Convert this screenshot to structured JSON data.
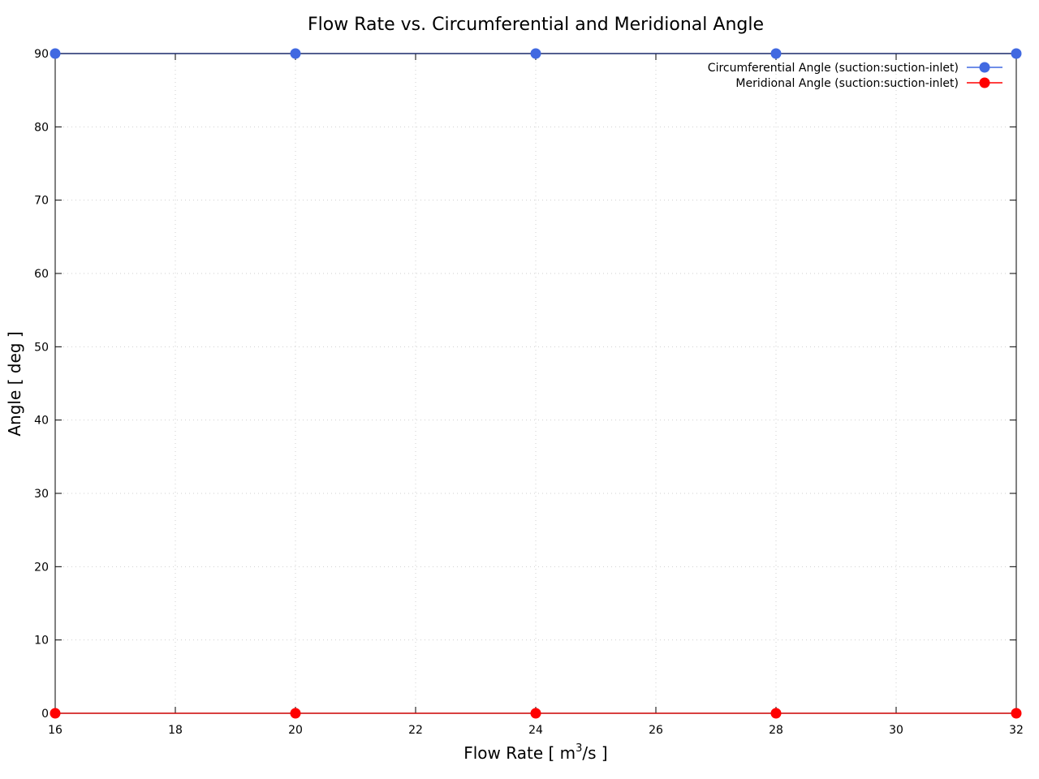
{
  "chart_data": {
    "type": "line",
    "title": "Flow Rate vs. Circumferential and Meridional Angle",
    "xlabel_prefix": "Flow Rate [ m",
    "xlabel_sup": "3",
    "xlabel_suffix": "/s ]",
    "ylabel": "Angle [ deg ]",
    "xlim": [
      16,
      32
    ],
    "ylim": [
      0,
      90
    ],
    "xticks": [
      "16",
      "18",
      "20",
      "22",
      "24",
      "26",
      "28",
      "30",
      "32"
    ],
    "yticks": [
      "0",
      "10",
      "20",
      "30",
      "40",
      "50",
      "60",
      "70",
      "80",
      "90"
    ],
    "grid": true,
    "legend_position": "top-right",
    "x": [
      16,
      20,
      24,
      28,
      32
    ],
    "series": [
      {
        "name": "Circumferential Angle (suction:suction-inlet)",
        "values": [
          90,
          90,
          90,
          90,
          90
        ],
        "color": "#4169e1",
        "line_color": "#1a2a6c"
      },
      {
        "name": "Meridional Angle (suction:suction-inlet)",
        "values": [
          0,
          0,
          0,
          0,
          0
        ],
        "color": "#ff0000",
        "line_color": "#cc0000"
      }
    ]
  }
}
